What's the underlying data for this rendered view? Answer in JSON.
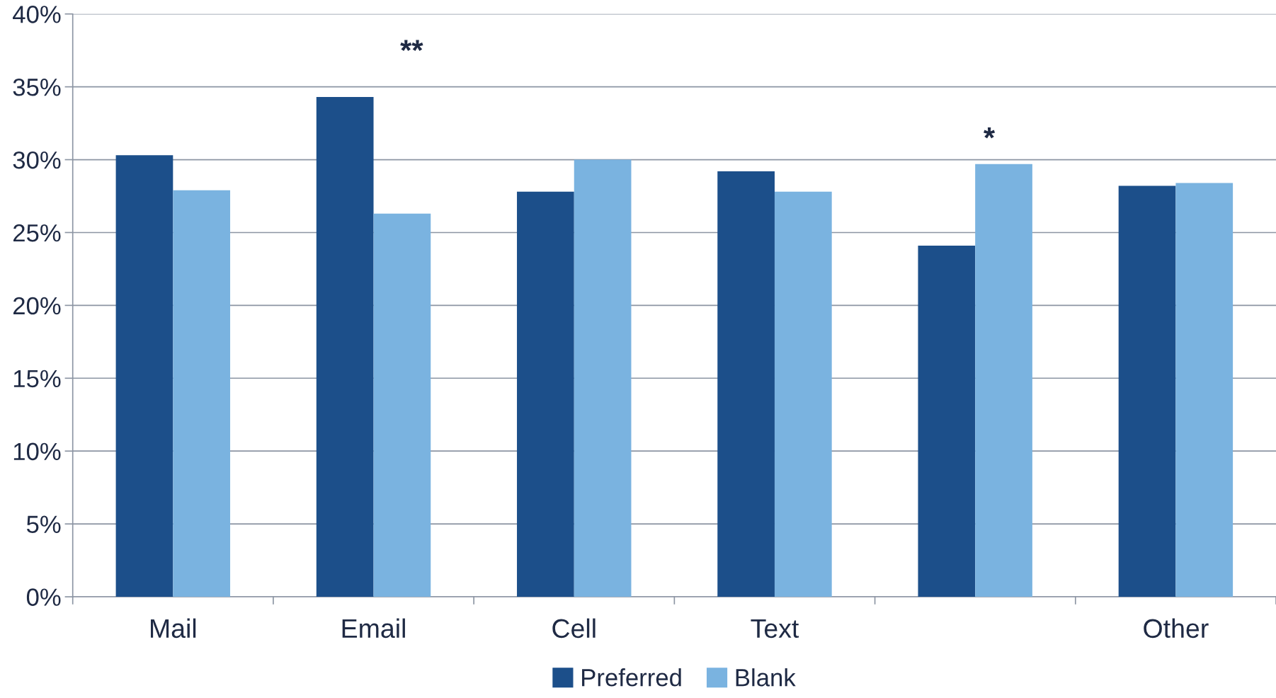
{
  "chart_data": {
    "type": "bar",
    "categories": [
      "Mail",
      "Email",
      "Cell",
      "Text",
      null,
      "Other"
    ],
    "series": [
      {
        "name": "Preferred",
        "color": "#1c4f8a",
        "values": [
          30.3,
          34.3,
          27.8,
          29.2,
          24.1,
          28.2
        ]
      },
      {
        "name": "Blank",
        "color": "#7ab3e0",
        "values": [
          27.9,
          26.3,
          30.0,
          27.8,
          29.7,
          28.4
        ]
      }
    ],
    "ylim": [
      0,
      40
    ],
    "yticks": [
      {
        "value": 0,
        "label": "0%"
      },
      {
        "value": 5,
        "label": "5%"
      },
      {
        "value": 10,
        "label": "10%"
      },
      {
        "value": 15,
        "label": "15%"
      },
      {
        "value": 20,
        "label": "20%"
      },
      {
        "value": 25,
        "label": "25%"
      },
      {
        "value": 30,
        "label": "30%"
      },
      {
        "value": 35,
        "label": "35%"
      },
      {
        "value": 40,
        "label": "40%"
      }
    ],
    "annotations": [
      "**",
      "*"
    ],
    "grid": "y",
    "legend": "bottom"
  }
}
